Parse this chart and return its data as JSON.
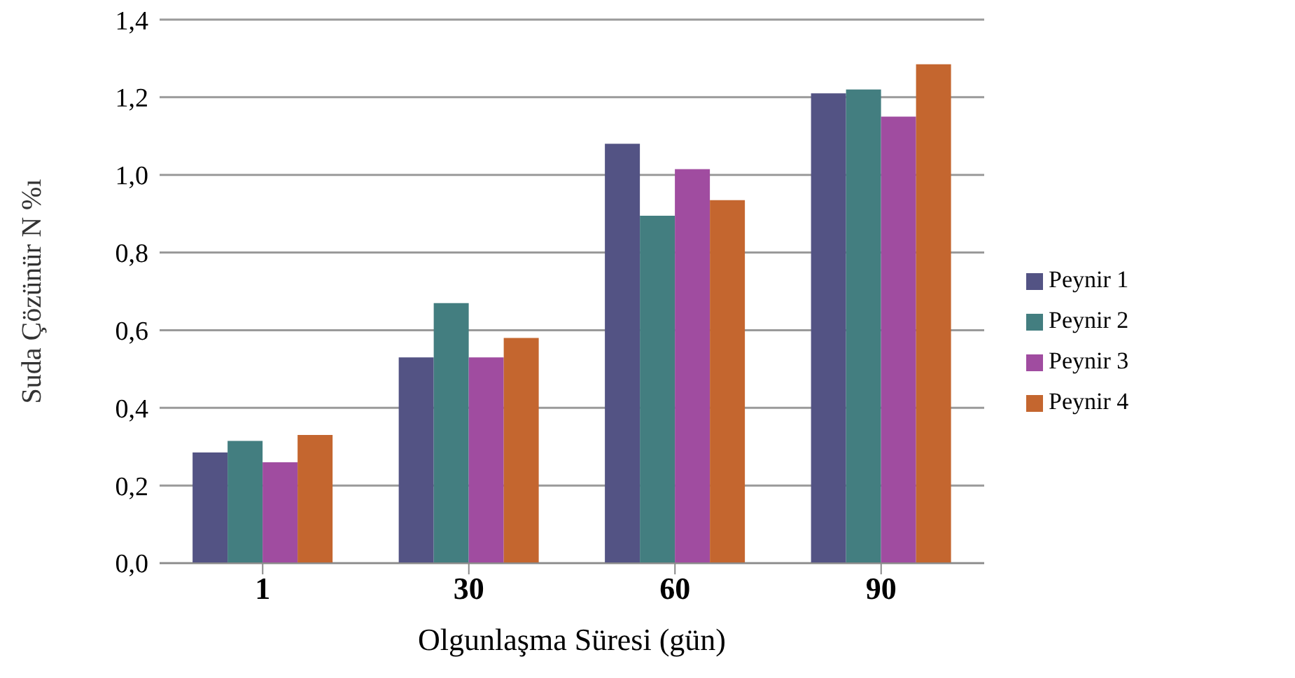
{
  "chart_data": {
    "type": "bar",
    "xlabel": "Olgunlaşma Süresi (gün)",
    "ylabel": "Suda Çözünür  N %ı",
    "categories": [
      "1",
      "30",
      "60",
      "90"
    ],
    "series": [
      {
        "name": "Peynir 1",
        "color": "#535384",
        "values": [
          0.285,
          0.53,
          1.08,
          1.21
        ]
      },
      {
        "name": "Peynir 2",
        "color": "#437e80",
        "values": [
          0.315,
          0.67,
          0.895,
          1.22
        ]
      },
      {
        "name": "Peynir 3",
        "color": "#a04ca0",
        "values": [
          0.26,
          0.53,
          1.015,
          1.15
        ]
      },
      {
        "name": "Peynir 4",
        "color": "#c4662f",
        "values": [
          0.33,
          0.58,
          0.935,
          1.285
        ]
      }
    ],
    "ylim": [
      0,
      1.4
    ],
    "yticks": [
      {
        "value": 0,
        "label": "0,0"
      },
      {
        "value": 0.2,
        "label": "0,2"
      },
      {
        "value": 0.4,
        "label": "0,4"
      },
      {
        "value": 0.6,
        "label": "0,6"
      },
      {
        "value": 0.8,
        "label": "0,8"
      },
      {
        "value": 1,
        "label": "1,0"
      },
      {
        "value": 1.2,
        "label": "1,2"
      },
      {
        "value": 1.4,
        "label": "1,4"
      }
    ],
    "grid": "y",
    "legend": "right"
  }
}
